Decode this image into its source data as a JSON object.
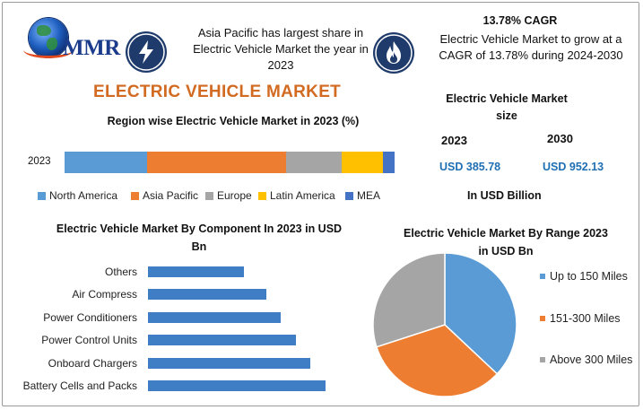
{
  "brand": {
    "logo_text": "MMR"
  },
  "header": {
    "share_text": "Asia Pacific has largest share in Electric Vehicle Market the year in 2023",
    "cagr_title": "13.78% CAGR",
    "cagr_text": "Electric Vehicle Market to grow at a CAGR of 13.78% during 2024-2030",
    "bolt_icon": "lightning-bolt-icon",
    "flame_icon": "flame-icon"
  },
  "main_title": "ELECTRIC VEHICLE MARKET",
  "market_size": {
    "title": "Electric Vehicle Market size",
    "year1": "2023",
    "year2": "2030",
    "value1": "USD 385.78",
    "value2": "USD 952.13",
    "unit": "In USD Billion"
  },
  "colors": {
    "north_america": "#5b9bd5",
    "asia_pacific": "#ed7d31",
    "europe": "#a5a5a5",
    "latin_america": "#ffc000",
    "mea": "#4472c4",
    "bar_blue": "#3f7ec4",
    "accent_title": "#d26a21",
    "value_blue": "#1f6fb2"
  },
  "chart_data": [
    {
      "type": "bar",
      "orientation": "horizontal",
      "stacked": true,
      "title": "Region wise Electric Vehicle Market in 2023 (%)",
      "categories": [
        "2023"
      ],
      "series": [
        {
          "name": "North America",
          "values": [
            25
          ]
        },
        {
          "name": "Asia Pacific",
          "values": [
            42
          ]
        },
        {
          "name": "Europe",
          "values": [
            17
          ]
        },
        {
          "name": "Latin America",
          "values": [
            12.5
          ]
        },
        {
          "name": "MEA",
          "values": [
            3.5
          ]
        }
      ],
      "legend": "bottom"
    },
    {
      "type": "bar",
      "orientation": "horizontal",
      "title": "Electric Vehicle Market By Component In 2023 in USD Bn",
      "categories": [
        "Others",
        "Air Compress",
        "Power Conditioners",
        "Power Control Units",
        "Onboard Chargers",
        "Battery Cells and Packs"
      ],
      "values": [
        107,
        132,
        148,
        165,
        181,
        198
      ]
    },
    {
      "type": "pie",
      "title": "Electric Vehicle Market By Range 2023 in USD Bn",
      "categories": [
        "Up to 150 Miles",
        "151-300 Miles",
        "Above 300 Miles"
      ],
      "values": [
        37,
        33,
        30
      ],
      "legend": "right"
    }
  ]
}
